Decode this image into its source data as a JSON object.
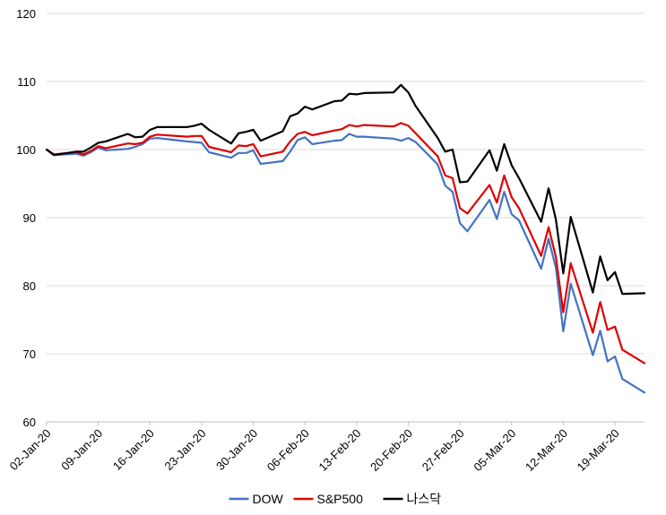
{
  "chart_data": {
    "type": "line",
    "title": "",
    "xlabel": "",
    "ylabel": "",
    "ylim": [
      60,
      120
    ],
    "yticks": [
      60,
      70,
      80,
      90,
      100,
      110,
      120
    ],
    "x_tick_labels": [
      "02-Jan-20",
      "09-Jan-20",
      "16-Jan-20",
      "23-Jan-20",
      "30-Jan-20",
      "06-Feb-20",
      "13-Feb-20",
      "20-Feb-20",
      "27-Feb-20",
      "05-Mar-20",
      "12-Mar-20",
      "19-Mar-20"
    ],
    "x_tick_dates": [
      "2020-01-02",
      "2020-01-09",
      "2020-01-16",
      "2020-01-23",
      "2020-01-30",
      "2020-02-06",
      "2020-02-13",
      "2020-02-20",
      "2020-02-27",
      "2020-03-05",
      "2020-03-12",
      "2020-03-19"
    ],
    "xlim": [
      "2020-01-02",
      "2020-03-23"
    ],
    "grid": "horizontal",
    "legend_position": "bottom",
    "x": [
      "2020-01-02",
      "2020-01-03",
      "2020-01-06",
      "2020-01-07",
      "2020-01-08",
      "2020-01-09",
      "2020-01-10",
      "2020-01-13",
      "2020-01-14",
      "2020-01-15",
      "2020-01-16",
      "2020-01-17",
      "2020-01-21",
      "2020-01-22",
      "2020-01-23",
      "2020-01-24",
      "2020-01-27",
      "2020-01-28",
      "2020-01-29",
      "2020-01-30",
      "2020-01-31",
      "2020-02-03",
      "2020-02-04",
      "2020-02-05",
      "2020-02-06",
      "2020-02-07",
      "2020-02-10",
      "2020-02-11",
      "2020-02-12",
      "2020-02-13",
      "2020-02-14",
      "2020-02-18",
      "2020-02-19",
      "2020-02-20",
      "2020-02-21",
      "2020-02-24",
      "2020-02-25",
      "2020-02-26",
      "2020-02-27",
      "2020-02-28",
      "2020-03-02",
      "2020-03-03",
      "2020-03-04",
      "2020-03-05",
      "2020-03-06",
      "2020-03-09",
      "2020-03-10",
      "2020-03-11",
      "2020-03-12",
      "2020-03-13",
      "2020-03-16",
      "2020-03-17",
      "2020-03-18",
      "2020-03-19",
      "2020-03-20",
      "2020-03-23"
    ],
    "series": [
      {
        "name": "DOW",
        "color": "#4472C4",
        "values": [
          100,
          99.2,
          99.4,
          99.1,
          99.6,
          100.3,
          99.9,
          100.1,
          100.4,
          100.8,
          101.6,
          101.7,
          101.2,
          101.1,
          101.0,
          99.6,
          98.8,
          99.5,
          99.5,
          99.9,
          97.9,
          98.3,
          99.7,
          101.4,
          101.8,
          100.8,
          101.3,
          101.4,
          102.3,
          101.9,
          101.9,
          101.6,
          101.3,
          101.7,
          101.1,
          97.8,
          94.7,
          93.8,
          89.2,
          88.0,
          92.6,
          89.8,
          93.8,
          90.5,
          89.6,
          82.5,
          86.9,
          82.6,
          73.3,
          80.3,
          69.8,
          73.4,
          68.9,
          69.6,
          66.3,
          64.3
        ]
      },
      {
        "name": "S&P500",
        "color": "#E00000",
        "values": [
          100,
          99.3,
          99.6,
          99.3,
          99.8,
          100.5,
          100.2,
          100.9,
          100.8,
          101.0,
          101.9,
          102.2,
          101.9,
          102.0,
          102.0,
          100.4,
          99.6,
          100.6,
          100.5,
          100.8,
          99.0,
          99.7,
          101.2,
          102.3,
          102.6,
          102.1,
          102.8,
          103.0,
          103.6,
          103.4,
          103.6,
          103.4,
          103.9,
          103.5,
          102.4,
          99.0,
          96.2,
          95.8,
          91.4,
          90.6,
          94.8,
          92.2,
          96.2,
          93.0,
          91.4,
          84.4,
          88.6,
          84.2,
          76.1,
          83.3,
          73.1,
          77.6,
          73.5,
          74.0,
          70.6,
          68.6
        ]
      },
      {
        "name": "나스닥",
        "color": "#000000",
        "values": [
          100,
          99.2,
          99.7,
          99.7,
          100.3,
          101.0,
          101.2,
          102.3,
          101.8,
          101.9,
          102.9,
          103.3,
          103.3,
          103.5,
          103.8,
          102.9,
          100.9,
          102.4,
          102.6,
          102.9,
          101.3,
          102.7,
          104.9,
          105.3,
          106.3,
          105.9,
          107.1,
          107.2,
          108.2,
          108.1,
          108.3,
          108.4,
          109.5,
          108.4,
          106.4,
          101.7,
          99.7,
          100.0,
          95.2,
          95.3,
          99.9,
          96.9,
          100.8,
          97.7,
          95.8,
          89.4,
          94.3,
          89.7,
          81.8,
          90.1,
          79.0,
          84.3,
          80.8,
          82.0,
          78.8,
          78.9
        ]
      }
    ]
  }
}
